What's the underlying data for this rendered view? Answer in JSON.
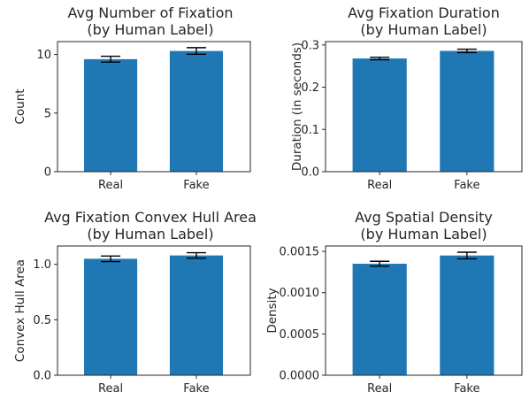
{
  "figure": {
    "colors": {
      "bar": "#1f77b4",
      "errorbar": "#000000",
      "text": "#262626"
    }
  },
  "chart_data": [
    {
      "type": "bar",
      "title": [
        "Avg Number of Fixation",
        "(by Human Label)"
      ],
      "xlabel": "",
      "ylabel": "Count",
      "categories": [
        "Real",
        "Fake"
      ],
      "values": [
        9.6,
        10.3
      ],
      "errors": [
        0.25,
        0.28
      ],
      "ylim": [
        0,
        11.1
      ],
      "yticks": [
        0,
        5,
        10
      ],
      "ytick_labels": [
        "0",
        "5",
        "10"
      ],
      "grid": false
    },
    {
      "type": "bar",
      "title": [
        "Avg Fixation Duration",
        "(by Human Label)"
      ],
      "xlabel": "",
      "ylabel": "Duration (in seconds)",
      "categories": [
        "Real",
        "Fake"
      ],
      "values": [
        0.268,
        0.286
      ],
      "errors": [
        0.003,
        0.004
      ],
      "ylim": [
        0,
        0.308
      ],
      "yticks": [
        0,
        0.1,
        0.2,
        0.3
      ],
      "ytick_labels": [
        "0.0",
        "0.1",
        "0.2",
        "0.3"
      ],
      "grid": false
    },
    {
      "type": "bar",
      "title": [
        "Avg Fixation Convex Hull Area",
        "(by Human Label)"
      ],
      "xlabel": "",
      "ylabel": "Convex Hull Area",
      "categories": [
        "Real",
        "Fake"
      ],
      "values": [
        1.05,
        1.08
      ],
      "errors": [
        0.025,
        0.025
      ],
      "ylim": [
        0,
        1.165
      ],
      "yticks": [
        0,
        0.5,
        1.0
      ],
      "ytick_labels": [
        "0.0",
        "0.5",
        "1.0"
      ],
      "grid": false
    },
    {
      "type": "bar",
      "title": [
        "Avg Spatial Density",
        "(by Human Label)"
      ],
      "xlabel": "",
      "ylabel": "Density",
      "categories": [
        "Real",
        "Fake"
      ],
      "values": [
        0.00135,
        0.00145
      ],
      "errors": [
        3e-05,
        4e-05
      ],
      "ylim": [
        0,
        0.001565
      ],
      "yticks": [
        0,
        0.0005,
        0.001,
        0.0015
      ],
      "ytick_labels": [
        "0.0000",
        "0.0005",
        "0.0010",
        "0.0015"
      ],
      "grid": false
    }
  ]
}
